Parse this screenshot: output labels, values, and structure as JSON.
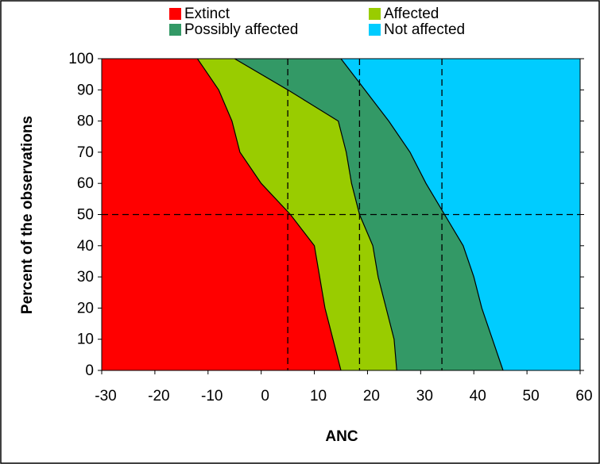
{
  "chart_data": {
    "type": "region",
    "xlabel": "ANC",
    "ylabel": "Percent of the observations",
    "series": [
      {
        "name": "Extinct",
        "color": "#ff0000"
      },
      {
        "name": "Affected",
        "color": "#99cc00"
      },
      {
        "name": "Possibly affected",
        "color": "#339966"
      },
      {
        "name": "Not affected",
        "color": "#00ccff"
      }
    ],
    "y": [
      0,
      10,
      20,
      30,
      40,
      50,
      60,
      70,
      80,
      90,
      100
    ],
    "boundaries": [
      [
        15,
        13.5,
        12,
        11,
        10,
        5.5,
        0,
        -4,
        -5.5,
        -8,
        -12
      ],
      [
        25.5,
        25,
        23.5,
        22,
        21,
        18.5,
        17,
        16,
        14.5,
        5,
        -5
      ],
      [
        45.5,
        43.5,
        41.5,
        40,
        38,
        34.5,
        31,
        28,
        24,
        19.5,
        15
      ]
    ],
    "reference_x": [
      5,
      18.5,
      34
    ],
    "reference_y": 50,
    "xlim": [
      -30,
      60
    ],
    "ylim": [
      0,
      100
    ],
    "xticks": [
      -30,
      -20,
      -10,
      0,
      10,
      20,
      30,
      40,
      50,
      60
    ],
    "yticks": [
      0,
      10,
      20,
      30,
      40,
      50,
      60,
      70,
      80,
      90,
      100
    ]
  }
}
